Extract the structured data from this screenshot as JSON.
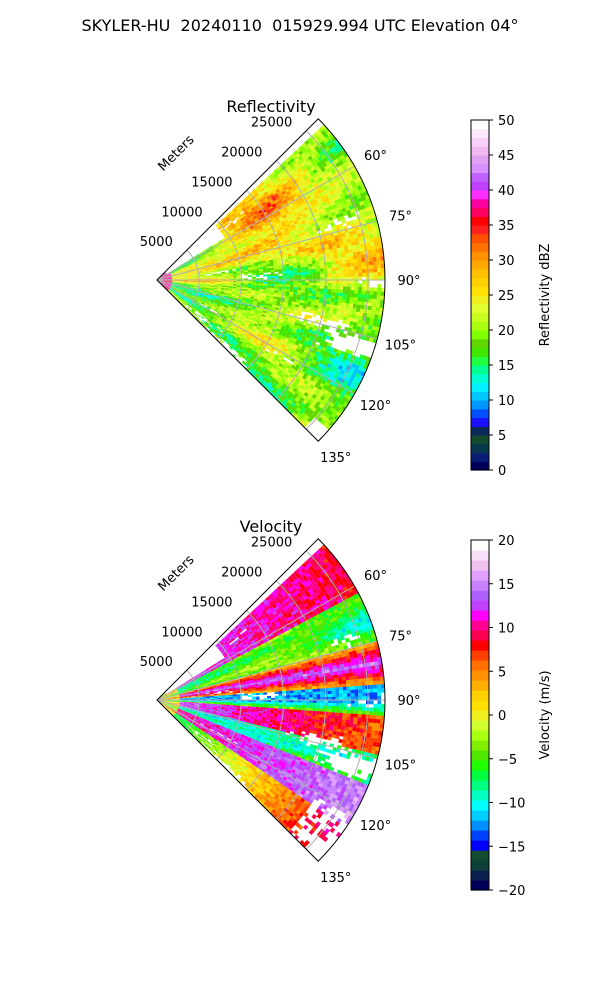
{
  "figure_title": "SKYLER-HU  20240110  015929.994 UTC Elevation 04°",
  "range_label": "Meters",
  "range_ticks": [
    "5000",
    "10000",
    "15000",
    "20000",
    "25000"
  ],
  "azimuth_ticks": [
    "60°",
    "75°",
    "90°",
    "105°",
    "120°",
    "135°"
  ],
  "chart_data": [
    {
      "type": "heatmap",
      "subtype": "radar-ppi-sector",
      "title": "Reflectivity",
      "colorbar": {
        "label": "Reflectivity dBZ",
        "min": 0,
        "max": 50,
        "ticks": [
          "0",
          "5",
          "10",
          "15",
          "20",
          "25",
          "30",
          "35",
          "40",
          "45",
          "50"
        ],
        "colors": [
          "#00005a",
          "#0a1e78",
          "#063850",
          "#124d32",
          "#0d2a5a",
          "#1a10ff",
          "#0050ff",
          "#0098ff",
          "#00c8ff",
          "#00f0ff",
          "#00ffd0",
          "#00ff90",
          "#20ff40",
          "#40e800",
          "#60d800",
          "#80ff00",
          "#a8ff10",
          "#c8ff20",
          "#e0ff30",
          "#f0f020",
          "#ffe000",
          "#ffd000",
          "#ffc000",
          "#ffa800",
          "#ff9000",
          "#ff7000",
          "#ff5000",
          "#ff2020",
          "#ff0000",
          "#ff0060",
          "#ff00a0",
          "#ff30ff",
          "#c040ff",
          "#c060ff",
          "#d890ff",
          "#e0a0f0",
          "#f0b8f0",
          "#f8d0f8",
          "#fce8fc",
          "#ffffff"
        ]
      },
      "azimuth_range_deg": [
        45,
        135
      ],
      "range_max_m": 27000,
      "grid": true
    },
    {
      "type": "heatmap",
      "subtype": "radar-ppi-sector",
      "title": "Velocity",
      "colorbar": {
        "label": "Velocity (m/s)",
        "min": -20,
        "max": 20,
        "ticks": [
          "−20",
          "−15",
          "−10",
          "−5",
          "0",
          "5",
          "10",
          "15",
          "20"
        ],
        "colors": [
          "#00005a",
          "#0a2050",
          "#0c4038",
          "#124d32",
          "#0000ff",
          "#0040ff",
          "#0090ff",
          "#00d0ff",
          "#00ffff",
          "#00ffc0",
          "#00ff80",
          "#00ff40",
          "#20ff00",
          "#50e800",
          "#80f000",
          "#a8ff10",
          "#d0ff30",
          "#f0f020",
          "#ffe000",
          "#ffd000",
          "#ffb000",
          "#ff9000",
          "#ff7000",
          "#ff4000",
          "#ff0000",
          "#ff0050",
          "#ff0090",
          "#ff00ff",
          "#c040ff",
          "#b060ff",
          "#c880ff",
          "#e0a0ff",
          "#f0c0f0",
          "#f8e0f8",
          "#ffffff"
        ]
      },
      "azimuth_range_deg": [
        45,
        135
      ],
      "range_max_m": 27000,
      "grid": true
    }
  ]
}
